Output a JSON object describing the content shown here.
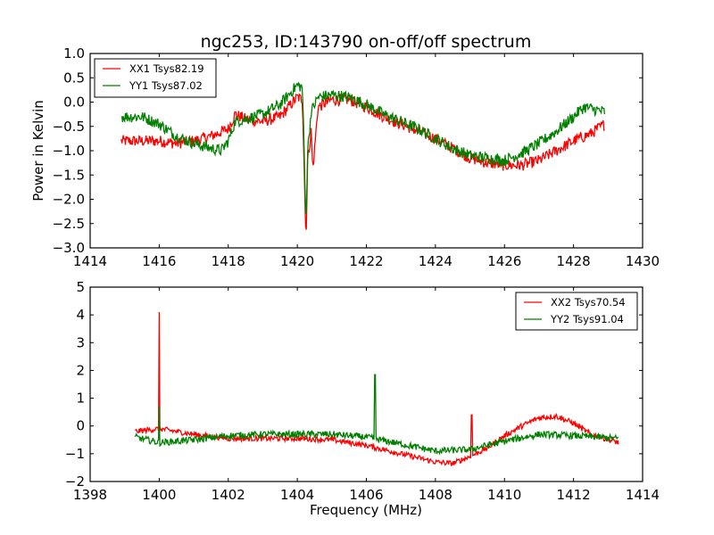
{
  "figure_title": "ngc253, ID:143790 on-off/off spectrum",
  "chart_data": [
    {
      "type": "line",
      "title": "ngc253, ID:143790 on-off/off spectrum",
      "xlabel": "",
      "ylabel": "Power in Kelvin",
      "xlim": [
        1414,
        1430
      ],
      "ylim": [
        -3.0,
        1.0
      ],
      "xticks": [
        1414,
        1416,
        1418,
        1420,
        1422,
        1424,
        1426,
        1428,
        1430
      ],
      "xtick_labels": [
        "1414",
        "1416",
        "1418",
        "1420",
        "1422",
        "1424",
        "1426",
        "1428",
        "1430"
      ],
      "yticks": [
        -3.0,
        -2.5,
        -2.0,
        -1.5,
        -1.0,
        -0.5,
        0.0,
        0.5,
        1.0
      ],
      "ytick_labels": [
        "−3.0",
        "−2.5",
        "−2.0",
        "−1.5",
        "−1.0",
        "−0.5",
        "0.0",
        "0.5",
        "1.0"
      ],
      "grid": false,
      "legend_position": "top-left",
      "x_range": [
        1414.9,
        1428.9
      ],
      "series": [
        {
          "name": "XX1 Tsys82.19",
          "color": "#ff0000",
          "noise": 0.12,
          "x": [
            1414.9,
            1415.5,
            1416.0,
            1416.5,
            1417.0,
            1417.5,
            1418.0,
            1418.2,
            1418.5,
            1419.0,
            1419.5,
            1420.0,
            1420.15,
            1420.25,
            1420.3,
            1420.4,
            1420.45,
            1420.6,
            1421.0,
            1421.5,
            1422.0,
            1422.5,
            1423.0,
            1423.5,
            1424.0,
            1424.5,
            1425.0,
            1425.5,
            1426.0,
            1426.5,
            1427.0,
            1427.5,
            1428.0,
            1428.5,
            1428.9
          ],
          "y": [
            -0.8,
            -0.8,
            -0.8,
            -0.85,
            -0.8,
            -0.7,
            -0.55,
            -0.25,
            -0.35,
            -0.4,
            -0.3,
            0.1,
            0.05,
            -2.85,
            -1.2,
            -0.6,
            -1.4,
            -0.1,
            0.05,
            0.05,
            -0.1,
            -0.3,
            -0.45,
            -0.6,
            -0.75,
            -0.95,
            -1.15,
            -1.25,
            -1.3,
            -1.3,
            -1.2,
            -1.0,
            -0.8,
            -0.65,
            -0.45
          ]
        },
        {
          "name": "YY1 Tsys87.02",
          "color": "#008000",
          "noise": 0.12,
          "x": [
            1414.9,
            1415.5,
            1416.0,
            1416.5,
            1417.0,
            1417.5,
            1417.8,
            1418.0,
            1418.2,
            1418.5,
            1419.0,
            1419.5,
            1420.0,
            1420.15,
            1420.25,
            1420.3,
            1420.4,
            1420.6,
            1421.0,
            1421.5,
            1422.0,
            1422.5,
            1423.0,
            1423.5,
            1424.0,
            1424.5,
            1425.0,
            1425.5,
            1426.0,
            1426.5,
            1427.0,
            1427.5,
            1428.0,
            1428.3,
            1428.9
          ],
          "y": [
            -0.3,
            -0.3,
            -0.45,
            -0.7,
            -0.85,
            -0.95,
            -1.0,
            -0.8,
            -0.4,
            -0.35,
            -0.25,
            -0.05,
            0.35,
            0.3,
            -2.5,
            -1.0,
            -0.2,
            0.1,
            0.15,
            0.1,
            -0.05,
            -0.25,
            -0.4,
            -0.55,
            -0.75,
            -0.95,
            -1.1,
            -1.15,
            -1.2,
            -1.05,
            -0.85,
            -0.6,
            -0.3,
            -0.1,
            -0.2
          ]
        }
      ]
    },
    {
      "type": "line",
      "title": "",
      "xlabel": "Frequency (MHz)",
      "ylabel": "",
      "xlim": [
        1398,
        1414
      ],
      "ylim": [
        -2,
        5
      ],
      "xticks": [
        1398,
        1400,
        1402,
        1404,
        1406,
        1408,
        1410,
        1412,
        1414
      ],
      "xtick_labels": [
        "1398",
        "1400",
        "1402",
        "1404",
        "1406",
        "1408",
        "1410",
        "1412",
        "1414"
      ],
      "yticks": [
        -2,
        -1,
        0,
        1,
        2,
        3,
        4,
        5
      ],
      "ytick_labels": [
        "−2",
        "−1",
        "0",
        "1",
        "2",
        "3",
        "4",
        "5"
      ],
      "grid": false,
      "legend_position": "top-right",
      "x_range": [
        1399.3,
        1413.3
      ],
      "series": [
        {
          "name": "XX2 Tsys70.54",
          "color": "#ff0000",
          "noise": 0.1,
          "spikes": [
            {
              "x": 1400.0,
              "y": 4.1
            },
            {
              "x": 1409.05,
              "y": 0.4
            }
          ],
          "x": [
            1399.3,
            1400.0,
            1401.0,
            1402.0,
            1403.0,
            1404.0,
            1405.0,
            1406.0,
            1407.0,
            1408.0,
            1408.5,
            1409.0,
            1409.5,
            1410.0,
            1410.5,
            1411.0,
            1411.5,
            1412.0,
            1412.5,
            1413.3
          ],
          "y": [
            -0.2,
            -0.1,
            -0.3,
            -0.45,
            -0.45,
            -0.45,
            -0.5,
            -0.7,
            -1.0,
            -1.3,
            -1.35,
            -1.1,
            -0.8,
            -0.35,
            0.0,
            0.3,
            0.35,
            0.1,
            -0.3,
            -0.6
          ]
        },
        {
          "name": "YY2 Tsys91.04",
          "color": "#008000",
          "noise": 0.12,
          "spikes": [
            {
              "x": 1400.0,
              "y": 0.7
            },
            {
              "x": 1406.25,
              "y": 1.85
            }
          ],
          "x": [
            1399.3,
            1400.0,
            1401.0,
            1402.0,
            1403.0,
            1404.0,
            1405.0,
            1406.0,
            1407.0,
            1408.0,
            1409.0,
            1410.0,
            1411.0,
            1412.0,
            1413.3
          ],
          "y": [
            -0.4,
            -0.6,
            -0.5,
            -0.35,
            -0.3,
            -0.3,
            -0.3,
            -0.4,
            -0.65,
            -0.9,
            -0.85,
            -0.55,
            -0.3,
            -0.35,
            -0.45
          ]
        }
      ]
    }
  ]
}
